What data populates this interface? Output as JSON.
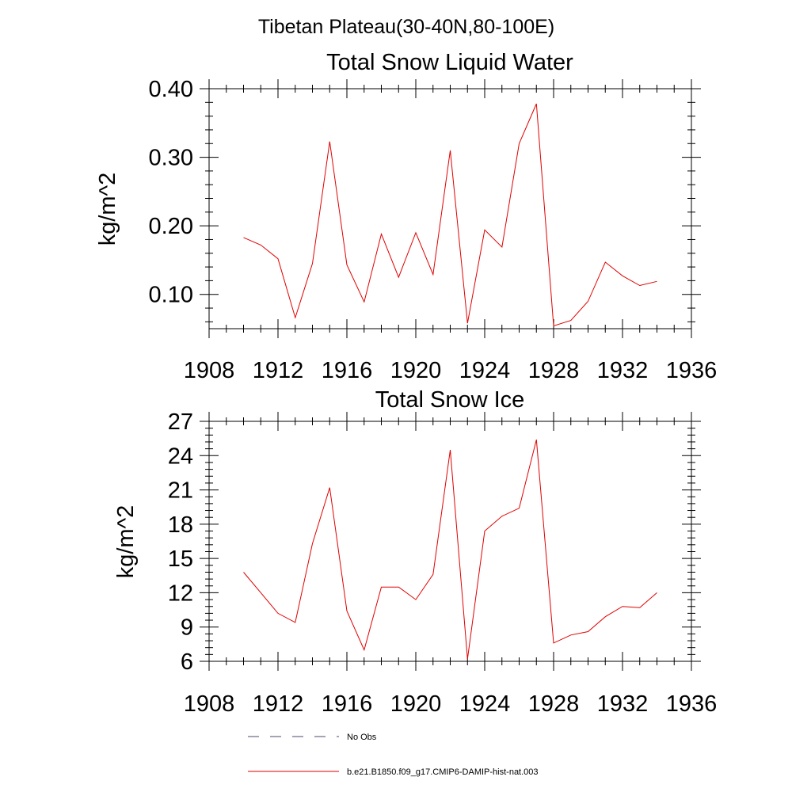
{
  "figure_title": "Tibetan Plateau(30-40N,80-100E)",
  "legend": [
    {
      "label": "No Obs",
      "style": "dashed",
      "color": "#4a4a6e"
    },
    {
      "label": "b.e21.B1850.f09_g17.CMIP6-DAMIP-hist-nat.003",
      "style": "solid",
      "color": "#e00000"
    }
  ],
  "chart_data": [
    {
      "type": "line",
      "title": "Total Snow Liquid Water",
      "xlabel": "",
      "ylabel": "kg/m^2",
      "xlim": [
        1908,
        1936
      ],
      "ylim": [
        0.05,
        0.4
      ],
      "xticks": [
        1908,
        1912,
        1916,
        1920,
        1924,
        1928,
        1932,
        1936
      ],
      "xtick_labels": [
        "1908",
        "1912",
        "1916",
        "1920",
        "1924",
        "1928",
        "1932",
        "1936"
      ],
      "yticks": [
        0.1,
        0.2,
        0.3,
        0.4
      ],
      "ytick_labels": [
        "0.10",
        "0.20",
        "0.30",
        "0.40"
      ],
      "grid": false,
      "series": [
        {
          "name": "b.e21.B1850.f09_g17.CMIP6-DAMIP-hist-nat.003",
          "color": "#e00000",
          "x": [
            1910,
            1911,
            1912,
            1913,
            1914,
            1915,
            1916,
            1917,
            1918,
            1919,
            1920,
            1921,
            1922,
            1923,
            1924,
            1925,
            1926,
            1927,
            1928,
            1929,
            1930,
            1931,
            1932,
            1933,
            1934
          ],
          "y": [
            0.183,
            0.172,
            0.152,
            0.066,
            0.145,
            0.323,
            0.143,
            0.089,
            0.188,
            0.125,
            0.19,
            0.129,
            0.31,
            0.058,
            0.194,
            0.169,
            0.32,
            0.378,
            0.054,
            0.062,
            0.09,
            0.147,
            0.127,
            0.113,
            0.119
          ]
        }
      ]
    },
    {
      "type": "line",
      "title": "Total Snow Ice",
      "xlabel": "",
      "ylabel": "kg/m^2",
      "xlim": [
        1908,
        1936
      ],
      "ylim": [
        6,
        27
      ],
      "xticks": [
        1908,
        1912,
        1916,
        1920,
        1924,
        1928,
        1932,
        1936
      ],
      "xtick_labels": [
        "1908",
        "1912",
        "1916",
        "1920",
        "1924",
        "1928",
        "1932",
        "1936"
      ],
      "yticks": [
        6,
        9,
        12,
        15,
        18,
        21,
        24,
        27
      ],
      "ytick_labels": [
        "6",
        "9",
        "12",
        "15",
        "18",
        "21",
        "24",
        "27"
      ],
      "grid": false,
      "series": [
        {
          "name": "b.e21.B1850.f09_g17.CMIP6-DAMIP-hist-nat.003",
          "color": "#e00000",
          "x": [
            1910,
            1911,
            1912,
            1913,
            1914,
            1915,
            1916,
            1917,
            1918,
            1919,
            1920,
            1921,
            1922,
            1923,
            1924,
            1925,
            1926,
            1927,
            1928,
            1929,
            1930,
            1931,
            1932,
            1933,
            1934
          ],
          "y": [
            13.8,
            12.0,
            10.2,
            9.4,
            16.3,
            21.2,
            10.4,
            7.0,
            12.5,
            12.5,
            11.4,
            13.6,
            24.5,
            6.2,
            17.4,
            18.7,
            19.4,
            25.4,
            7.6,
            8.3,
            8.6,
            9.9,
            10.8,
            10.7,
            12.0
          ]
        }
      ]
    }
  ]
}
